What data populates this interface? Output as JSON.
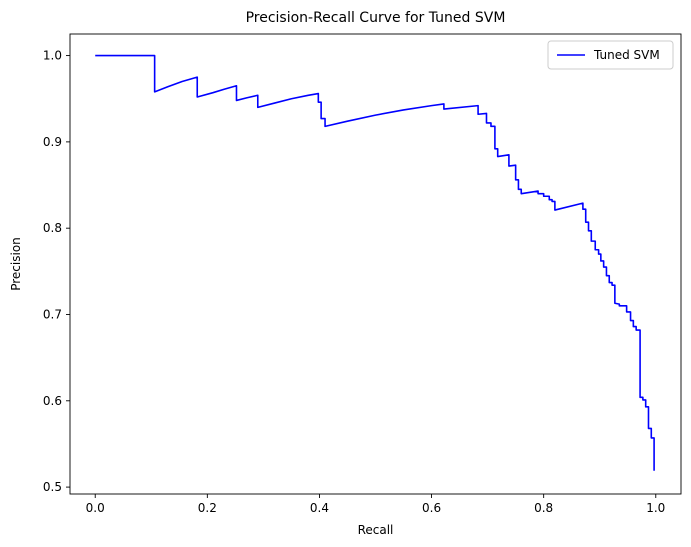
{
  "chart_data": {
    "type": "line",
    "title": "Precision-Recall Curve for Tuned SVM",
    "xlabel": "Recall",
    "ylabel": "Precision",
    "xlim": [
      -0.045,
      1.045
    ],
    "ylim": [
      0.492,
      1.025
    ],
    "xticks": [
      0.0,
      0.2,
      0.4,
      0.6,
      0.8,
      1.0
    ],
    "xtick_labels": [
      "0.0",
      "0.2",
      "0.4",
      "0.6",
      "0.8",
      "1.0"
    ],
    "yticks": [
      0.5,
      0.6,
      0.7,
      0.8,
      0.9,
      1.0
    ],
    "ytick_labels": [
      "0.5",
      "0.6",
      "0.7",
      "0.8",
      "0.9",
      "1.0"
    ],
    "grid": false,
    "legend": "top-right",
    "series": [
      {
        "name": "Tuned SVM",
        "color": "#0000ff",
        "points": [
          [
            0.0,
            1.0
          ],
          [
            0.106,
            1.0
          ],
          [
            0.106,
            0.958
          ],
          [
            0.13,
            0.964
          ],
          [
            0.155,
            0.97
          ],
          [
            0.182,
            0.975
          ],
          [
            0.182,
            0.952
          ],
          [
            0.21,
            0.957
          ],
          [
            0.23,
            0.961
          ],
          [
            0.252,
            0.965
          ],
          [
            0.252,
            0.948
          ],
          [
            0.27,
            0.951
          ],
          [
            0.29,
            0.954
          ],
          [
            0.29,
            0.94
          ],
          [
            0.32,
            0.945
          ],
          [
            0.35,
            0.95
          ],
          [
            0.38,
            0.954
          ],
          [
            0.398,
            0.956
          ],
          [
            0.398,
            0.946
          ],
          [
            0.403,
            0.946
          ],
          [
            0.403,
            0.927
          ],
          [
            0.41,
            0.927
          ],
          [
            0.41,
            0.918
          ],
          [
            0.45,
            0.924
          ],
          [
            0.5,
            0.931
          ],
          [
            0.55,
            0.937
          ],
          [
            0.6,
            0.942
          ],
          [
            0.622,
            0.944
          ],
          [
            0.622,
            0.938
          ],
          [
            0.683,
            0.942
          ],
          [
            0.683,
            0.932
          ],
          [
            0.698,
            0.933
          ],
          [
            0.698,
            0.922
          ],
          [
            0.706,
            0.922
          ],
          [
            0.706,
            0.918
          ],
          [
            0.713,
            0.918
          ],
          [
            0.713,
            0.892
          ],
          [
            0.718,
            0.892
          ],
          [
            0.718,
            0.883
          ],
          [
            0.738,
            0.885
          ],
          [
            0.738,
            0.872
          ],
          [
            0.75,
            0.873
          ],
          [
            0.75,
            0.856
          ],
          [
            0.755,
            0.856
          ],
          [
            0.755,
            0.845
          ],
          [
            0.76,
            0.845
          ],
          [
            0.76,
            0.84
          ],
          [
            0.79,
            0.843
          ],
          [
            0.79,
            0.84
          ],
          [
            0.8,
            0.84
          ],
          [
            0.8,
            0.837
          ],
          [
            0.81,
            0.837
          ],
          [
            0.81,
            0.833
          ],
          [
            0.815,
            0.833
          ],
          [
            0.815,
            0.831
          ],
          [
            0.82,
            0.831
          ],
          [
            0.82,
            0.821
          ],
          [
            0.87,
            0.829
          ],
          [
            0.87,
            0.822
          ],
          [
            0.875,
            0.822
          ],
          [
            0.875,
            0.807
          ],
          [
            0.88,
            0.807
          ],
          [
            0.88,
            0.797
          ],
          [
            0.885,
            0.797
          ],
          [
            0.885,
            0.785
          ],
          [
            0.892,
            0.785
          ],
          [
            0.892,
            0.775
          ],
          [
            0.898,
            0.775
          ],
          [
            0.898,
            0.77
          ],
          [
            0.902,
            0.77
          ],
          [
            0.902,
            0.762
          ],
          [
            0.907,
            0.762
          ],
          [
            0.907,
            0.755
          ],
          [
            0.912,
            0.755
          ],
          [
            0.912,
            0.745
          ],
          [
            0.917,
            0.745
          ],
          [
            0.917,
            0.737
          ],
          [
            0.922,
            0.737
          ],
          [
            0.922,
            0.734
          ],
          [
            0.927,
            0.734
          ],
          [
            0.927,
            0.713
          ],
          [
            0.935,
            0.712
          ],
          [
            0.935,
            0.71
          ],
          [
            0.948,
            0.71
          ],
          [
            0.948,
            0.703
          ],
          [
            0.955,
            0.703
          ],
          [
            0.955,
            0.693
          ],
          [
            0.96,
            0.693
          ],
          [
            0.96,
            0.686
          ],
          [
            0.965,
            0.686
          ],
          [
            0.965,
            0.682
          ],
          [
            0.972,
            0.682
          ],
          [
            0.972,
            0.604
          ],
          [
            0.977,
            0.604
          ],
          [
            0.977,
            0.601
          ],
          [
            0.982,
            0.601
          ],
          [
            0.982,
            0.593
          ],
          [
            0.987,
            0.593
          ],
          [
            0.987,
            0.568
          ],
          [
            0.992,
            0.568
          ],
          [
            0.992,
            0.557
          ],
          [
            0.997,
            0.557
          ],
          [
            0.997,
            0.519
          ]
        ]
      }
    ]
  }
}
